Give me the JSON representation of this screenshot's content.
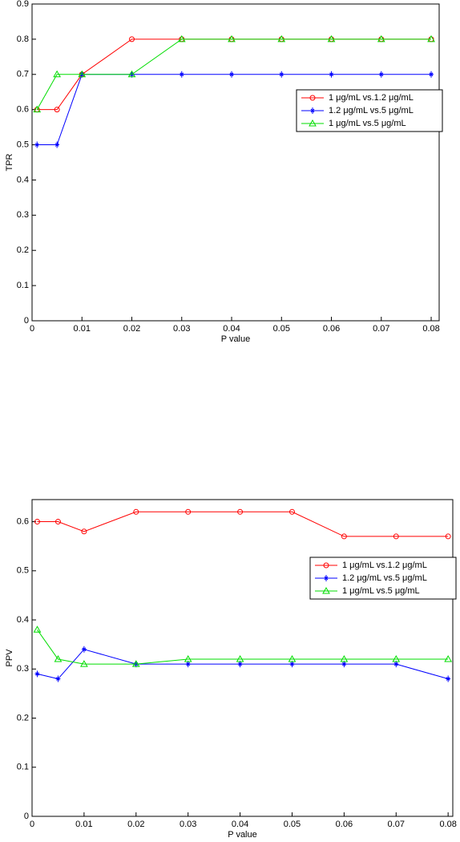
{
  "chart_data": [
    {
      "type": "line",
      "xlabel": "P value",
      "ylabel": "TPR",
      "x": [
        0.001,
        0.005,
        0.01,
        0.02,
        0.03,
        0.04,
        0.05,
        0.06,
        0.07,
        0.08
      ],
      "xlim": [
        0,
        0.0816
      ],
      "xticks": [
        0,
        0.01,
        0.02,
        0.03,
        0.04,
        0.05,
        0.06,
        0.07,
        0.08
      ],
      "ylim": [
        0,
        0.9
      ],
      "yticks": [
        0,
        0.1,
        0.2,
        0.3,
        0.4,
        0.5,
        0.6,
        0.7,
        0.8,
        0.9
      ],
      "legend": "right",
      "series": [
        {
          "name": "1 μg/mL vs.1.2 μg/mL",
          "color": "#ff0000",
          "marker": "o",
          "values": [
            0.6,
            0.6,
            0.7,
            0.8,
            0.8,
            0.8,
            0.8,
            0.8,
            0.8,
            0.8
          ]
        },
        {
          "name": "1.2 μg/mL vs.5 μg/mL",
          "color": "#0000ff",
          "marker": "*",
          "values": [
            0.5,
            0.5,
            0.7,
            0.7,
            0.7,
            0.7,
            0.7,
            0.7,
            0.7,
            0.7
          ]
        },
        {
          "name": "1 μg/mL vs.5 μg/mL",
          "color": "#00dd00",
          "marker": "^",
          "values": [
            0.6,
            0.7,
            0.7,
            0.7,
            0.8,
            0.8,
            0.8,
            0.8,
            0.8,
            0.8
          ]
        }
      ]
    },
    {
      "type": "line",
      "xlabel": "P value",
      "ylabel": "PPV",
      "x": [
        0.001,
        0.005,
        0.01,
        0.02,
        0.03,
        0.04,
        0.05,
        0.06,
        0.07,
        0.08
      ],
      "xlim": [
        0,
        0.0809
      ],
      "xticks": [
        0,
        0.01,
        0.02,
        0.03,
        0.04,
        0.05,
        0.06,
        0.07,
        0.08
      ],
      "ylim": [
        0,
        0.645
      ],
      "yticks": [
        0,
        0.1,
        0.2,
        0.3,
        0.4,
        0.5,
        0.6
      ],
      "legend": "upper right",
      "series": [
        {
          "name": "1 μg/mL vs.1.2 μg/mL",
          "color": "#ff0000",
          "marker": "o",
          "values": [
            0.6,
            0.6,
            0.58,
            0.62,
            0.62,
            0.62,
            0.62,
            0.57,
            0.57,
            0.57
          ]
        },
        {
          "name": "1.2 μg/mL vs.5 μg/mL",
          "color": "#0000ff",
          "marker": "*",
          "values": [
            0.29,
            0.28,
            0.34,
            0.31,
            0.31,
            0.31,
            0.31,
            0.31,
            0.31,
            0.28
          ]
        },
        {
          "name": "1 μg/mL vs.5 μg/mL",
          "color": "#00dd00",
          "marker": "^",
          "values": [
            0.38,
            0.32,
            0.31,
            0.31,
            0.32,
            0.32,
            0.32,
            0.32,
            0.32,
            0.32
          ]
        }
      ]
    }
  ]
}
